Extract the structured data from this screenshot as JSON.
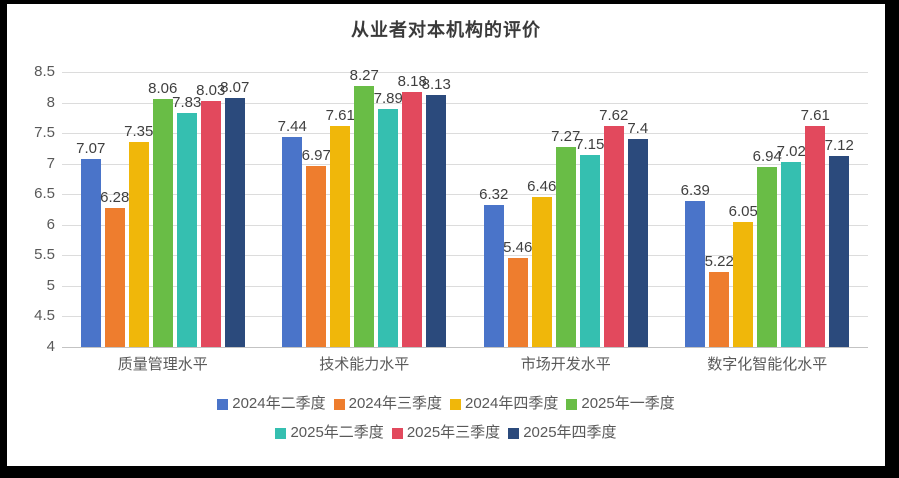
{
  "palette": {
    "frame_border": "#000000",
    "chart_background": "#ffffff",
    "title_color": "#3a3a3a",
    "axis_text_color": "#595959",
    "value_label_color": "#3f3f3f",
    "gridline_color": "#dcdcdc"
  },
  "chart_data": {
    "type": "bar",
    "title": "从业者对本机构的评价",
    "categories": [
      "质量管理水平",
      "技术能力水平",
      "市场开发水平",
      "数字化智能化水平"
    ],
    "series": [
      {
        "name": "2024年二季度",
        "color": "#4A74C9",
        "values": [
          7.07,
          7.44,
          6.32,
          6.39
        ]
      },
      {
        "name": "2024年三季度",
        "color": "#EE7D2E",
        "values": [
          6.28,
          6.97,
          5.46,
          5.22
        ]
      },
      {
        "name": "2024年四季度",
        "color": "#F0B70A",
        "values": [
          7.35,
          7.61,
          6.46,
          6.05
        ]
      },
      {
        "name": "2025年一季度",
        "color": "#69BD46",
        "values": [
          8.06,
          8.27,
          7.27,
          6.94
        ]
      },
      {
        "name": "2025年二季度",
        "color": "#35BFB0",
        "values": [
          7.83,
          7.89,
          7.15,
          7.02
        ]
      },
      {
        "name": "2025年三季度",
        "color": "#E2495D",
        "values": [
          8.03,
          8.18,
          7.62,
          7.61
        ]
      },
      {
        "name": "2025年四季度",
        "color": "#2B4A7C",
        "values": [
          8.07,
          8.13,
          7.4,
          7.12
        ]
      }
    ],
    "ylim": [
      4,
      8.5
    ],
    "ytick_step": 0.5,
    "ytick_labels": [
      "8.5",
      "8",
      "7.5",
      "7",
      "6.5",
      "6",
      "5.5",
      "5",
      "4.5",
      "4"
    ],
    "grid": true,
    "value_labels": true,
    "legend_position": "bottom",
    "legend_rows": [
      4,
      3
    ]
  }
}
